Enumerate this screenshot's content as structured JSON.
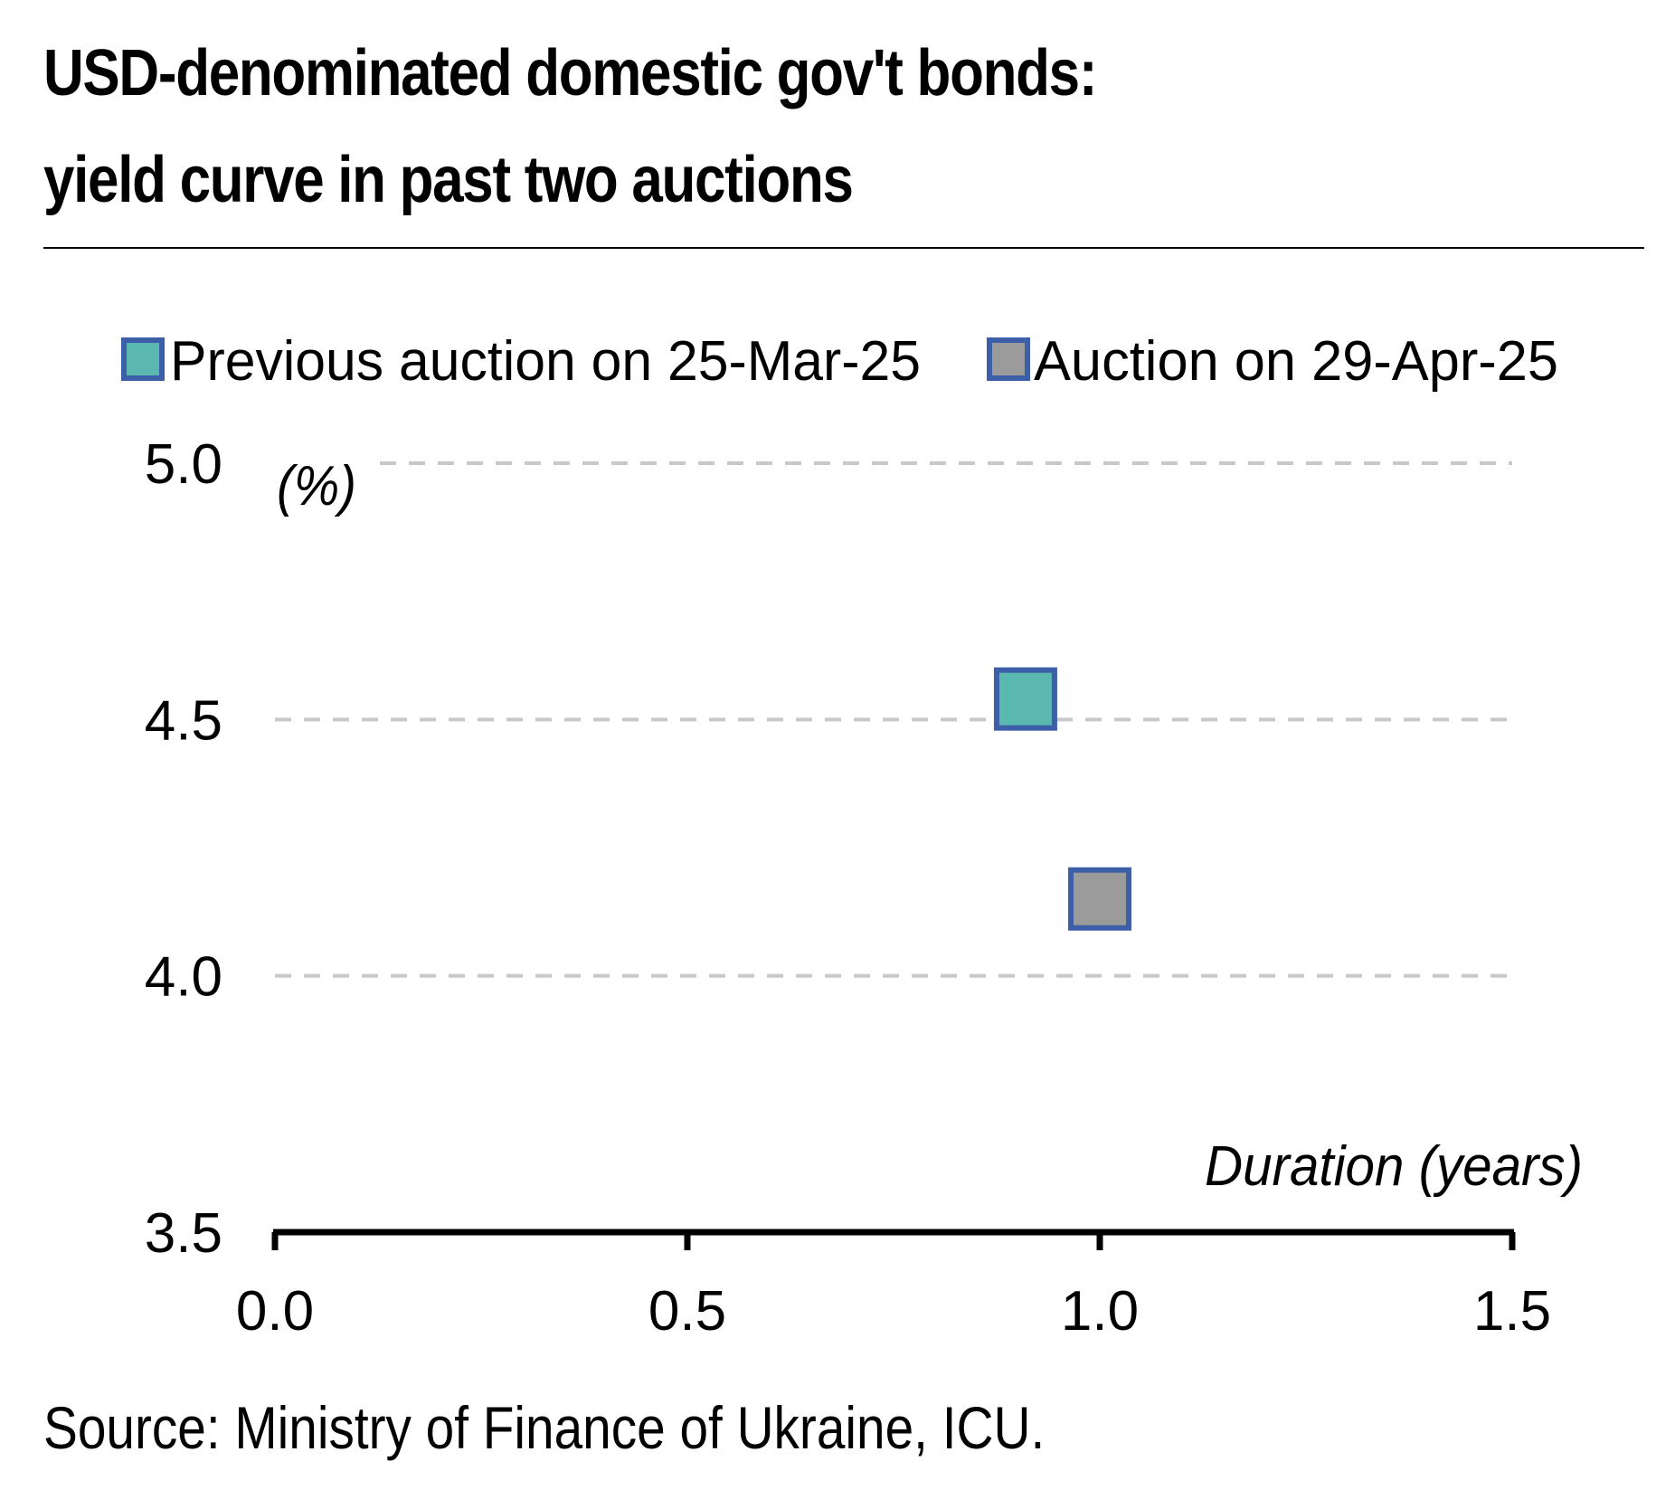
{
  "title_line1": "USD-denominated domestic gov't bonds:",
  "title_line2": "yield curve in past two auctions",
  "source": "Source: Ministry of Finance of Ukraine, ICU.",
  "colors": {
    "previous_fill": "#5ab8b0",
    "current_fill": "#9b9b9b",
    "marker_border": "#3d5fa8",
    "grid": "#c8c8c8",
    "axis": "#000000"
  },
  "chart_data": {
    "type": "scatter",
    "xlabel": "Duration (years)",
    "ylabel": "(%)",
    "xlim": [
      0.0,
      1.5
    ],
    "ylim": [
      3.5,
      5.0
    ],
    "x_ticks": [
      "0.0",
      "0.5",
      "1.0",
      "1.5"
    ],
    "y_ticks": [
      "5.0",
      "4.5",
      "4.0",
      "3.5"
    ],
    "grid": "horizontal dashed",
    "legend_position": "top",
    "series": [
      {
        "name": "Previous auction on 25-Mar-25",
        "color": "#5ab8b0",
        "x": [
          0.91
        ],
        "y": [
          4.54
        ]
      },
      {
        "name": "Auction on 29-Apr-25",
        "color": "#9b9b9b",
        "x": [
          1.0
        ],
        "y": [
          4.15
        ]
      }
    ]
  }
}
